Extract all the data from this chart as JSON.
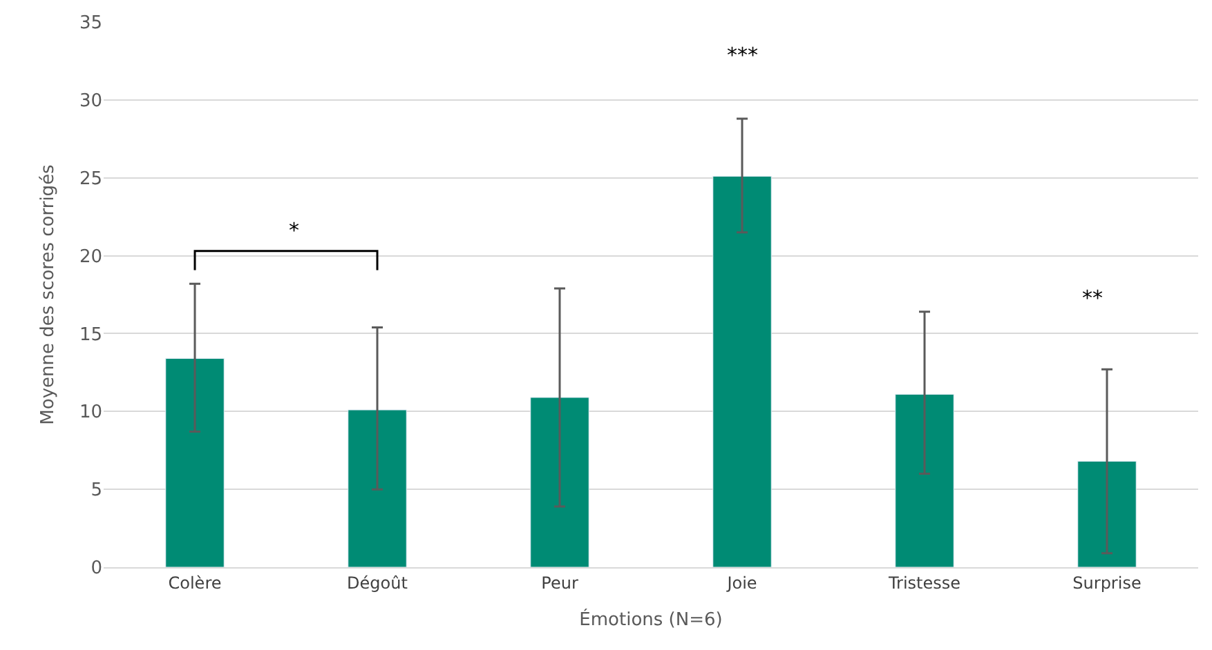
{
  "chart_data": {
    "type": "bar",
    "xlabel": "Émotions (N=6)",
    "ylabel": "Moyenne des scores corrigés",
    "categories": [
      "Colère",
      "Dégoût",
      "Peur",
      "Joie",
      "Tristesse",
      "Surprise"
    ],
    "values": [
      13.4,
      10.1,
      10.9,
      25.1,
      11.1,
      6.8
    ],
    "errors": [
      [
        8.7,
        18.2
      ],
      [
        5.0,
        15.4
      ],
      [
        3.9,
        17.9
      ],
      [
        21.5,
        28.8
      ],
      [
        6.0,
        16.4
      ],
      [
        0.9,
        12.7
      ]
    ],
    "color": "#008b74",
    "ylim": [
      0,
      35
    ],
    "yticks": [
      0,
      5,
      10,
      15,
      20,
      25,
      30,
      35
    ],
    "grid": "y",
    "legend": false,
    "annotations": [
      "*",
      "***",
      "**"
    ]
  }
}
